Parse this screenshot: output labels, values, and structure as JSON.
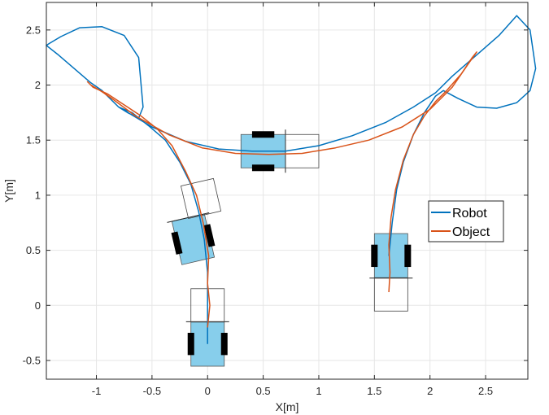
{
  "chart_data": {
    "type": "line",
    "xlabel": "X[m]",
    "ylabel": "Y[m]",
    "xlim": [
      -1.45,
      2.88
    ],
    "ylim": [
      -0.67,
      2.75
    ],
    "grid": true,
    "legend_position": "right",
    "x_ticks": [
      {
        "value": -1,
        "label": "-1"
      },
      {
        "value": -0.5,
        "label": "-0.5"
      },
      {
        "value": 0,
        "label": "0"
      },
      {
        "value": 0.5,
        "label": "0.5"
      },
      {
        "value": 1,
        "label": "1"
      },
      {
        "value": 1.5,
        "label": "1.5"
      },
      {
        "value": 2,
        "label": "2"
      },
      {
        "value": 2.5,
        "label": "2.5"
      }
    ],
    "y_ticks": [
      {
        "value": -0.5,
        "label": "-0.5"
      },
      {
        "value": 0,
        "label": "0"
      },
      {
        "value": 0.5,
        "label": "0.5"
      },
      {
        "value": 1,
        "label": "1"
      },
      {
        "value": 1.5,
        "label": "1.5"
      },
      {
        "value": 2,
        "label": "2"
      },
      {
        "value": 2.5,
        "label": "2.5"
      }
    ],
    "series": [
      {
        "name": "Robot",
        "color": "#0072BD",
        "x": [
          0.0,
          0.0,
          0.0,
          -0.03,
          -0.08,
          -0.15,
          -0.25,
          -0.38,
          -0.53,
          -0.68,
          -0.8,
          -0.72,
          -0.62,
          -0.58,
          -0.62,
          -0.75,
          -0.95,
          -1.15,
          -1.32,
          -1.42,
          -1.45,
          -1.35,
          -1.2,
          -1.05,
          -0.95,
          -0.8,
          -0.5,
          -0.2,
          0.1,
          0.4,
          0.7,
          1.0,
          1.3,
          1.6,
          1.85,
          2.05,
          2.2,
          2.45,
          2.62,
          2.78,
          2.9,
          2.95,
          2.9,
          2.78,
          2.6,
          2.42,
          2.25,
          2.12,
          2.05,
          1.95,
          1.85,
          1.76,
          1.7,
          1.66,
          1.64,
          1.63
        ],
        "y": [
          -0.35,
          0.0,
          0.3,
          0.6,
          0.85,
          1.1,
          1.3,
          1.5,
          1.63,
          1.75,
          1.8,
          1.75,
          1.7,
          1.8,
          2.25,
          2.45,
          2.53,
          2.52,
          2.44,
          2.38,
          2.36,
          2.28,
          2.15,
          2.02,
          1.95,
          1.8,
          1.62,
          1.49,
          1.42,
          1.4,
          1.4,
          1.45,
          1.54,
          1.66,
          1.8,
          1.93,
          2.08,
          2.3,
          2.45,
          2.63,
          2.5,
          2.15,
          1.95,
          1.84,
          1.79,
          1.8,
          1.88,
          1.95,
          1.9,
          1.75,
          1.55,
          1.3,
          1.05,
          0.75,
          0.55,
          0.45
        ]
      },
      {
        "name": "Object",
        "color": "#D95319",
        "x": [
          0.0,
          0.02,
          0.0,
          0.01,
          -0.04,
          -0.1,
          -0.2,
          -0.32,
          -0.45,
          -0.6,
          -0.75,
          -0.9,
          -1.03,
          -1.08,
          -1.05,
          -0.95,
          -0.85,
          -0.65,
          -0.35,
          -0.05,
          0.25,
          0.55,
          0.85,
          1.15,
          1.45,
          1.75,
          2.0,
          2.2,
          2.35,
          2.42,
          2.38,
          2.28,
          2.15,
          2.05,
          1.95,
          1.85,
          1.76,
          1.69,
          1.65,
          1.63,
          1.64,
          1.63
        ],
        "y": [
          -0.2,
          0.0,
          0.2,
          0.45,
          0.75,
          1.0,
          1.22,
          1.45,
          1.6,
          1.72,
          1.82,
          1.92,
          1.98,
          2.03,
          2.0,
          1.94,
          1.87,
          1.72,
          1.55,
          1.43,
          1.38,
          1.37,
          1.38,
          1.43,
          1.5,
          1.62,
          1.78,
          1.98,
          2.2,
          2.3,
          2.25,
          2.1,
          1.95,
          1.85,
          1.72,
          1.55,
          1.32,
          1.05,
          0.8,
          0.55,
          0.3,
          0.12
        ]
      }
    ],
    "vehicles": [
      {
        "style": "robot",
        "cx": 0.0,
        "cy": -0.35,
        "heading_deg": 90,
        "length": 0.4,
        "width": 0.3
      },
      {
        "style": "object",
        "cx": 0.0,
        "cy": 0.0,
        "heading_deg": 90,
        "length": 0.3,
        "width": 0.3
      },
      {
        "style": "robot",
        "cx": -0.13,
        "cy": 0.6,
        "heading_deg": 103,
        "length": 0.4,
        "width": 0.3
      },
      {
        "style": "object",
        "cx": -0.06,
        "cy": 0.97,
        "heading_deg": 103,
        "length": 0.3,
        "width": 0.3
      },
      {
        "style": "robot",
        "cx": 0.5,
        "cy": 1.4,
        "heading_deg": 0,
        "length": 0.4,
        "width": 0.3
      },
      {
        "style": "object",
        "cx": 0.85,
        "cy": 1.4,
        "heading_deg": 0,
        "length": 0.3,
        "width": 0.3
      },
      {
        "style": "robot",
        "cx": 1.65,
        "cy": 0.45,
        "heading_deg": -90,
        "length": 0.4,
        "width": 0.3
      },
      {
        "style": "object",
        "cx": 1.65,
        "cy": 0.1,
        "heading_deg": -90,
        "length": 0.3,
        "width": 0.3
      }
    ],
    "colors": {
      "robot_body": "#87CEEB",
      "robot_outline": "#555555",
      "wheel": "#000000",
      "object_outline": "#444444",
      "grid": "#e6e6e6",
      "axis": "#262626"
    }
  }
}
